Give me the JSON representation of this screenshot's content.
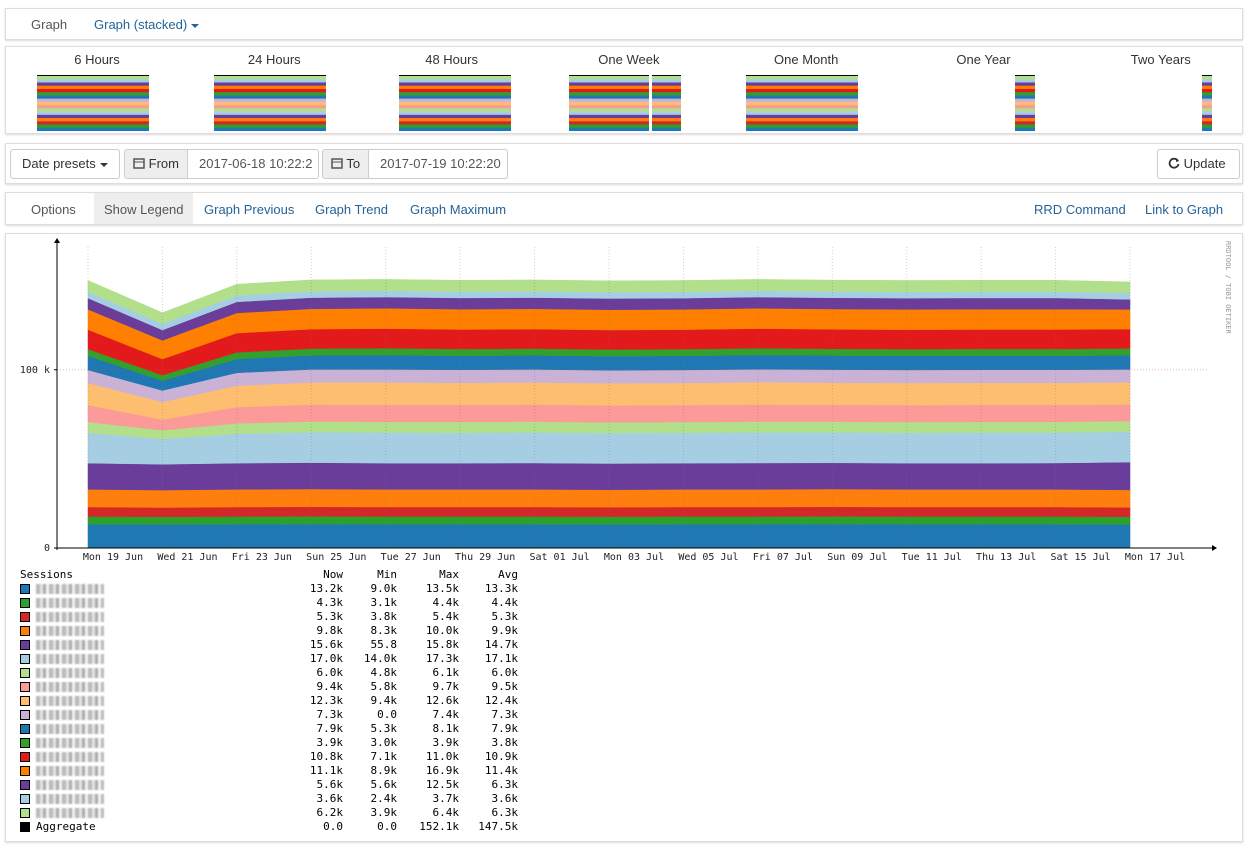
{
  "nav": {
    "title": "Graph",
    "dropdown": "Graph (stacked)"
  },
  "thumbnails": [
    "6 Hours",
    "24 Hours",
    "48 Hours",
    "One Week",
    "One Month",
    "One Year",
    "Two Years"
  ],
  "date_bar": {
    "presets": "Date presets",
    "from_label": "From",
    "from_value": "2017-06-18 10:22:2",
    "to_label": "To",
    "to_value": "2017-07-19 10:22:20",
    "update": "Update"
  },
  "options_bar": {
    "title": "Options",
    "items": [
      "Show Legend",
      "Graph Previous",
      "Graph Trend",
      "Graph Maximum"
    ],
    "right_items": [
      "RRD Command",
      "Link to Graph"
    ]
  },
  "chart_data": {
    "type": "area",
    "stacked": true,
    "grid": true,
    "watermark": "RRDTOOL / TOBI OETIKER",
    "x": [
      "Mon 19 Jun",
      "Wed 21 Jun",
      "Fri 23 Jun",
      "Sun 25 Jun",
      "Tue 27 Jun",
      "Thu 29 Jun",
      "Sat 01 Jul",
      "Mon 03 Jul",
      "Wed 05 Jul",
      "Fri 07 Jul",
      "Sun 09 Jul",
      "Tue 11 Jul",
      "Thu 13 Jul",
      "Sat 15 Jul",
      "Mon 17 Jul"
    ],
    "ylim": [
      0,
      170000
    ],
    "yticks": [
      0,
      {
        "value": 100000,
        "label": "100 k"
      }
    ],
    "series": [
      {
        "color": "#1f77b4",
        "values": [
          13300,
          13200,
          13300,
          13400,
          13300,
          13300,
          13300,
          13200,
          13300,
          13300,
          13400,
          13300,
          13300,
          13300,
          13200
        ]
      },
      {
        "color": "#2ca02c",
        "values": [
          4400,
          4300,
          4400,
          4400,
          4400,
          4400,
          4400,
          4400,
          4400,
          4400,
          4400,
          4400,
          4400,
          4400,
          4300
        ]
      },
      {
        "color": "#d62728",
        "values": [
          5300,
          5200,
          5300,
          5300,
          5300,
          5300,
          5300,
          5300,
          5300,
          5300,
          5300,
          5300,
          5300,
          5300,
          5300
        ]
      },
      {
        "color": "#ff7f0e",
        "values": [
          9900,
          9800,
          9900,
          10000,
          9900,
          9900,
          9900,
          9800,
          9900,
          9900,
          10000,
          9900,
          9900,
          9900,
          9800
        ]
      },
      {
        "color": "#6a3d9a",
        "values": [
          14700,
          14500,
          14700,
          14800,
          14700,
          14700,
          14800,
          14700,
          14700,
          14800,
          14700,
          14700,
          14700,
          14800,
          15600
        ]
      },
      {
        "color": "#a6cee3",
        "values": [
          17100,
          14200,
          16500,
          17100,
          17200,
          17100,
          17200,
          17100,
          17100,
          17200,
          17100,
          17100,
          17200,
          17100,
          17000
        ]
      },
      {
        "color": "#b2df8a",
        "values": [
          6000,
          4900,
          5800,
          6000,
          6000,
          6100,
          6000,
          6000,
          6000,
          6000,
          6000,
          6000,
          6000,
          6000,
          6000
        ]
      },
      {
        "color": "#fb9a99",
        "values": [
          9500,
          6000,
          9200,
          9500,
          9600,
          9500,
          9600,
          9500,
          9500,
          9600,
          9500,
          9500,
          9500,
          9500,
          9400
        ]
      },
      {
        "color": "#fdbf6f",
        "values": [
          12400,
          9800,
          12000,
          12400,
          12500,
          12400,
          12400,
          12400,
          12400,
          12500,
          12400,
          12400,
          12400,
          12400,
          12300
        ]
      },
      {
        "color": "#cab2d6",
        "values": [
          7300,
          6500,
          7200,
          7300,
          7300,
          7300,
          7300,
          7300,
          7300,
          7300,
          7300,
          7300,
          7300,
          7300,
          7300
        ]
      },
      {
        "color": "#1f78b4",
        "values": [
          7900,
          5500,
          7700,
          7900,
          8000,
          7900,
          7900,
          7900,
          7900,
          8000,
          7900,
          7900,
          7900,
          7900,
          7900
        ]
      },
      {
        "color": "#33a02c",
        "values": [
          3800,
          3100,
          3800,
          3800,
          3900,
          3800,
          3800,
          3800,
          3800,
          3800,
          3800,
          3800,
          3800,
          3800,
          3900
        ]
      },
      {
        "color": "#e31a1c",
        "values": [
          10900,
          9000,
          10800,
          10900,
          11000,
          10900,
          10900,
          10900,
          10900,
          11000,
          10900,
          10900,
          10900,
          10900,
          10800
        ]
      },
      {
        "color": "#ff7f00",
        "values": [
          11400,
          10500,
          11300,
          11400,
          11400,
          11400,
          11400,
          11400,
          11400,
          11400,
          11400,
          11400,
          11400,
          11400,
          11100
        ]
      },
      {
        "color": "#6a3d9a",
        "values": [
          6300,
          5800,
          6200,
          6300,
          6300,
          6300,
          6300,
          6300,
          6300,
          6300,
          6300,
          6300,
          6300,
          6300,
          5600
        ]
      },
      {
        "color": "#a6cee3",
        "values": [
          3600,
          3500,
          3600,
          3600,
          3600,
          3600,
          3600,
          3600,
          3600,
          3600,
          3600,
          3600,
          3600,
          3600,
          3600
        ]
      },
      {
        "color": "#b2df8a",
        "values": [
          6300,
          6200,
          6300,
          6300,
          6300,
          6300,
          6300,
          6300,
          6300,
          6300,
          6300,
          6300,
          6300,
          6300,
          6200
        ]
      }
    ]
  },
  "legend": {
    "title": "Sessions",
    "columns": [
      "Now",
      "Min",
      "Max",
      "Avg"
    ],
    "rows": [
      {
        "color": "#1f77b4",
        "cells": [
          "13.2k",
          "9.0k",
          "13.5k",
          "13.3k"
        ]
      },
      {
        "color": "#2ca02c",
        "cells": [
          "4.3k",
          "3.1k",
          "4.4k",
          "4.4k"
        ]
      },
      {
        "color": "#d62728",
        "cells": [
          "5.3k",
          "3.8k",
          "5.4k",
          "5.3k"
        ]
      },
      {
        "color": "#ff7f0e",
        "cells": [
          "9.8k",
          "8.3k",
          "10.0k",
          "9.9k"
        ]
      },
      {
        "color": "#6a3d9a",
        "cells": [
          "15.6k",
          "55.8",
          "15.8k",
          "14.7k"
        ]
      },
      {
        "color": "#a6cee3",
        "cells": [
          "17.0k",
          "14.0k",
          "17.3k",
          "17.1k"
        ]
      },
      {
        "color": "#b2df8a",
        "cells": [
          "6.0k",
          "4.8k",
          "6.1k",
          "6.0k"
        ]
      },
      {
        "color": "#fb9a99",
        "cells": [
          "9.4k",
          "5.8k",
          "9.7k",
          "9.5k"
        ]
      },
      {
        "color": "#fdbf6f",
        "cells": [
          "12.3k",
          "9.4k",
          "12.6k",
          "12.4k"
        ]
      },
      {
        "color": "#cab2d6",
        "cells": [
          "7.3k",
          "0.0",
          "7.4k",
          "7.3k"
        ]
      },
      {
        "color": "#1f78b4",
        "cells": [
          "7.9k",
          "5.3k",
          "8.1k",
          "7.9k"
        ]
      },
      {
        "color": "#33a02c",
        "cells": [
          "3.9k",
          "3.0k",
          "3.9k",
          "3.8k"
        ]
      },
      {
        "color": "#e31a1c",
        "cells": [
          "10.8k",
          "7.1k",
          "11.0k",
          "10.9k"
        ]
      },
      {
        "color": "#ff7f00",
        "cells": [
          "11.1k",
          "8.9k",
          "16.9k",
          "11.4k"
        ]
      },
      {
        "color": "#6a3d9a",
        "cells": [
          "5.6k",
          "5.6k",
          "12.5k",
          "6.3k"
        ]
      },
      {
        "color": "#a6cee3",
        "cells": [
          "3.6k",
          "2.4k",
          "3.7k",
          "3.6k"
        ]
      },
      {
        "color": "#b2df8a",
        "cells": [
          "6.2k",
          "3.9k",
          "6.4k",
          "6.3k"
        ]
      }
    ],
    "aggregate": {
      "name": "Aggregate",
      "color": "#000000",
      "cells": [
        "0.0",
        "0.0",
        "152.1k",
        "147.5k"
      ]
    }
  }
}
